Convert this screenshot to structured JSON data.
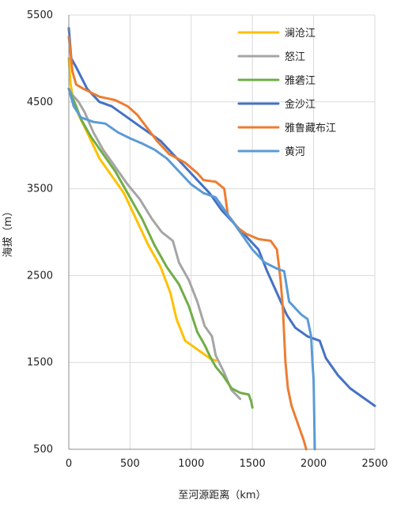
{
  "chart_data": {
    "type": "line",
    "title": "",
    "xlabel": "至河源距离（km）",
    "ylabel": "海拔（m）",
    "xlim": [
      0,
      2500
    ],
    "ylim": [
      500,
      5500
    ],
    "x_ticks": [
      0,
      500,
      1000,
      1500,
      2000,
      2500
    ],
    "y_ticks": [
      500,
      1500,
      2500,
      3500,
      4500,
      5500
    ],
    "grid": true,
    "legend_position": "top-right",
    "series": [
      {
        "name": "澜沧江",
        "color": "#FFC000",
        "points": [
          [
            0,
            5000
          ],
          [
            15,
            4700
          ],
          [
            40,
            4500
          ],
          [
            80,
            4350
          ],
          [
            150,
            4150
          ],
          [
            250,
            3850
          ],
          [
            350,
            3650
          ],
          [
            450,
            3450
          ],
          [
            550,
            3150
          ],
          [
            650,
            2850
          ],
          [
            750,
            2600
          ],
          [
            830,
            2300
          ],
          [
            880,
            2000
          ],
          [
            950,
            1750
          ],
          [
            1050,
            1650
          ],
          [
            1150,
            1550
          ],
          [
            1200,
            1520
          ]
        ]
      },
      {
        "name": "怒江",
        "color": "#A5A5A5",
        "points": [
          [
            0,
            4650
          ],
          [
            30,
            4580
          ],
          [
            80,
            4500
          ],
          [
            130,
            4380
          ],
          [
            200,
            4150
          ],
          [
            280,
            3950
          ],
          [
            380,
            3750
          ],
          [
            480,
            3550
          ],
          [
            580,
            3380
          ],
          [
            680,
            3150
          ],
          [
            760,
            3000
          ],
          [
            850,
            2900
          ],
          [
            900,
            2650
          ],
          [
            980,
            2450
          ],
          [
            1050,
            2200
          ],
          [
            1110,
            1920
          ],
          [
            1170,
            1800
          ],
          [
            1200,
            1580
          ],
          [
            1270,
            1380
          ],
          [
            1330,
            1180
          ],
          [
            1400,
            1080
          ]
        ]
      },
      {
        "name": "雅砻江",
        "color": "#70AD47",
        "points": [
          [
            0,
            4650
          ],
          [
            30,
            4550
          ],
          [
            60,
            4450
          ],
          [
            100,
            4300
          ],
          [
            180,
            4100
          ],
          [
            280,
            3900
          ],
          [
            380,
            3700
          ],
          [
            480,
            3450
          ],
          [
            600,
            3150
          ],
          [
            700,
            2850
          ],
          [
            800,
            2600
          ],
          [
            900,
            2400
          ],
          [
            980,
            2150
          ],
          [
            1050,
            1850
          ],
          [
            1110,
            1700
          ],
          [
            1160,
            1550
          ],
          [
            1200,
            1450
          ],
          [
            1260,
            1350
          ],
          [
            1330,
            1200
          ],
          [
            1400,
            1150
          ],
          [
            1470,
            1130
          ],
          [
            1490,
            1050
          ],
          [
            1500,
            980
          ]
        ]
      },
      {
        "name": "金沙江",
        "color": "#4472C4",
        "points": [
          [
            0,
            5350
          ],
          [
            20,
            5000
          ],
          [
            60,
            4900
          ],
          [
            150,
            4650
          ],
          [
            250,
            4500
          ],
          [
            350,
            4450
          ],
          [
            450,
            4350
          ],
          [
            550,
            4250
          ],
          [
            650,
            4150
          ],
          [
            750,
            4050
          ],
          [
            850,
            3900
          ],
          [
            950,
            3750
          ],
          [
            1050,
            3600
          ],
          [
            1150,
            3450
          ],
          [
            1250,
            3250
          ],
          [
            1350,
            3100
          ],
          [
            1450,
            2950
          ],
          [
            1550,
            2800
          ],
          [
            1620,
            2550
          ],
          [
            1700,
            2300
          ],
          [
            1780,
            2050
          ],
          [
            1850,
            1900
          ],
          [
            1950,
            1800
          ],
          [
            2050,
            1750
          ],
          [
            2100,
            1550
          ],
          [
            2200,
            1350
          ],
          [
            2300,
            1200
          ],
          [
            2400,
            1100
          ],
          [
            2500,
            1000
          ]
        ]
      },
      {
        "name": "雅鲁藏布江",
        "color": "#ED7D31",
        "points": [
          [
            0,
            5250
          ],
          [
            30,
            4850
          ],
          [
            60,
            4700
          ],
          [
            120,
            4650
          ],
          [
            250,
            4560
          ],
          [
            380,
            4520
          ],
          [
            480,
            4450
          ],
          [
            560,
            4350
          ],
          [
            640,
            4200
          ],
          [
            720,
            4050
          ],
          [
            820,
            3900
          ],
          [
            950,
            3800
          ],
          [
            1050,
            3680
          ],
          [
            1100,
            3600
          ],
          [
            1200,
            3580
          ],
          [
            1270,
            3500
          ],
          [
            1300,
            3200
          ],
          [
            1380,
            3050
          ],
          [
            1450,
            2980
          ],
          [
            1550,
            2920
          ],
          [
            1650,
            2900
          ],
          [
            1700,
            2800
          ],
          [
            1730,
            2450
          ],
          [
            1750,
            2100
          ],
          [
            1760,
            1800
          ],
          [
            1770,
            1500
          ],
          [
            1790,
            1200
          ],
          [
            1820,
            1000
          ],
          [
            1870,
            800
          ],
          [
            1920,
            600
          ],
          [
            1940,
            500
          ]
        ]
      },
      {
        "name": "黄河",
        "color": "#5B9BD5",
        "points": [
          [
            0,
            4650
          ],
          [
            40,
            4450
          ],
          [
            100,
            4320
          ],
          [
            200,
            4270
          ],
          [
            300,
            4250
          ],
          [
            400,
            4150
          ],
          [
            500,
            4080
          ],
          [
            600,
            4020
          ],
          [
            700,
            3950
          ],
          [
            800,
            3850
          ],
          [
            900,
            3700
          ],
          [
            1000,
            3550
          ],
          [
            1100,
            3450
          ],
          [
            1200,
            3400
          ],
          [
            1300,
            3200
          ],
          [
            1400,
            3000
          ],
          [
            1500,
            2800
          ],
          [
            1600,
            2650
          ],
          [
            1700,
            2580
          ],
          [
            1760,
            2550
          ],
          [
            1800,
            2200
          ],
          [
            1900,
            2050
          ],
          [
            1950,
            2000
          ],
          [
            1980,
            1800
          ],
          [
            1990,
            1500
          ],
          [
            2000,
            1300
          ],
          [
            2010,
            500
          ]
        ]
      }
    ]
  }
}
